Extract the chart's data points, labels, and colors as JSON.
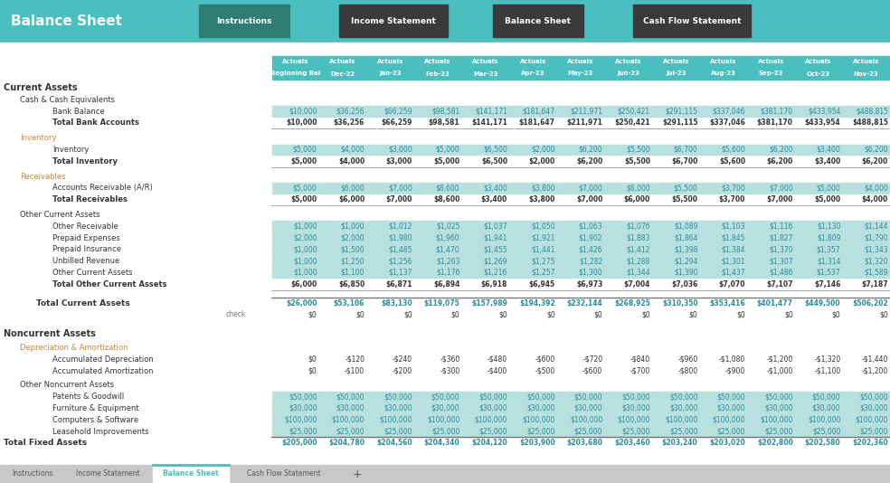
{
  "title": "Balance Sheet",
  "nav_buttons": [
    "Instructions",
    "Income Statement",
    "Balance Sheet",
    "Cash Flow Statement"
  ],
  "header_bg": "#4BBFBF",
  "nav_dark_bg": "#3A3A3A",
  "nav_active_bg": "#2E7D74",
  "col_header_bg": "#4BBFBF",
  "data_cell_bg": "#B8E0DF",
  "col_headers_row1": [
    "Actuals",
    "Actuals",
    "Actuals",
    "Actuals",
    "Actuals",
    "Actuals",
    "Actuals",
    "Actuals",
    "Actuals",
    "Actuals",
    "Actuals",
    "Actuals",
    "Actuals"
  ],
  "col_headers_row2": [
    "Beginning Bal",
    "Dec-22",
    "Jan-23",
    "Feb-23",
    "Mar-23",
    "Apr-23",
    "May-23",
    "Jun-23",
    "Jul-23",
    "Aug-23",
    "Sep-23",
    "Oct-23",
    "Nov-23"
  ],
  "rows": [
    {
      "type": "section",
      "label": "Current Assets",
      "indent": 0
    },
    {
      "type": "subsection",
      "label": "Cash & Cash Equivalents",
      "indent": 1
    },
    {
      "type": "data",
      "label": "Bank Balance",
      "indent": 3,
      "colored": true,
      "bold": false,
      "values": [
        "$10,000",
        "$36,256",
        "$66,259",
        "$98,581",
        "$141,171",
        "$181,647",
        "$211,971",
        "$250,421",
        "$291,115",
        "$337,046",
        "$381,170",
        "$433,954",
        "$488,815"
      ]
    },
    {
      "type": "total",
      "label": "Total Bank Accounts",
      "indent": 3,
      "colored": false,
      "bold": true,
      "values": [
        "$10,000",
        "$36,256",
        "$66,259",
        "$98,581",
        "$141,171",
        "$181,647",
        "$211,971",
        "$250,421",
        "$291,115",
        "$337,046",
        "$381,170",
        "$433,954",
        "$488,815"
      ]
    },
    {
      "type": "gap"
    },
    {
      "type": "subsection",
      "label": "Inventory",
      "indent": 1,
      "color": "#C8873A"
    },
    {
      "type": "data",
      "label": "Inventory",
      "indent": 3,
      "colored": true,
      "bold": false,
      "values": [
        "$5,000",
        "$4,000",
        "$3,000",
        "$5,000",
        "$6,500",
        "$2,000",
        "$6,200",
        "$5,500",
        "$6,700",
        "$5,600",
        "$6,200",
        "$3,400",
        "$6,200"
      ]
    },
    {
      "type": "total",
      "label": "Total Inventory",
      "indent": 3,
      "colored": false,
      "bold": true,
      "values": [
        "$5,000",
        "$4,000",
        "$3,000",
        "$5,000",
        "$6,500",
        "$2,000",
        "$6,200",
        "$5,500",
        "$6,700",
        "$5,600",
        "$6,200",
        "$3,400",
        "$6,200"
      ]
    },
    {
      "type": "gap"
    },
    {
      "type": "subsection",
      "label": "Receivables",
      "indent": 1,
      "color": "#C8873A"
    },
    {
      "type": "data",
      "label": "Accounts Receivable (A/R)",
      "indent": 3,
      "colored": true,
      "bold": false,
      "values": [
        "$5,000",
        "$6,000",
        "$7,000",
        "$8,600",
        "$3,400",
        "$3,800",
        "$7,000",
        "$6,000",
        "$5,500",
        "$3,700",
        "$7,000",
        "$5,000",
        "$4,000"
      ]
    },
    {
      "type": "total",
      "label": "Total Receivables",
      "indent": 3,
      "colored": false,
      "bold": true,
      "values": [
        "$5,000",
        "$6,000",
        "$7,000",
        "$8,600",
        "$3,400",
        "$3,800",
        "$7,000",
        "$6,000",
        "$5,500",
        "$3,700",
        "$7,000",
        "$5,000",
        "$4,000"
      ]
    },
    {
      "type": "gap"
    },
    {
      "type": "subsection",
      "label": "Other Current Assets",
      "indent": 1
    },
    {
      "type": "data",
      "label": "Other Receivable",
      "indent": 3,
      "colored": true,
      "bold": false,
      "values": [
        "$1,000",
        "$1,000",
        "$1,012",
        "$1,025",
        "$1,037",
        "$1,050",
        "$1,063",
        "$1,076",
        "$1,089",
        "$1,103",
        "$1,116",
        "$1,130",
        "$1,144"
      ]
    },
    {
      "type": "data",
      "label": "Prepaid Expenses",
      "indent": 3,
      "colored": true,
      "bold": false,
      "values": [
        "$2,000",
        "$2,000",
        "$1,980",
        "$1,960",
        "$1,941",
        "$1,921",
        "$1,902",
        "$1,883",
        "$1,864",
        "$1,845",
        "$1,827",
        "$1,809",
        "$1,790"
      ]
    },
    {
      "type": "data",
      "label": "Prepaid Insurance",
      "indent": 3,
      "colored": true,
      "bold": false,
      "values": [
        "$1,000",
        "$1,500",
        "$1,485",
        "$1,470",
        "$1,455",
        "$1,441",
        "$1,426",
        "$1,412",
        "$1,398",
        "$1,384",
        "$1,370",
        "$1,357",
        "$1,343"
      ]
    },
    {
      "type": "data",
      "label": "Unbilled Revenue",
      "indent": 3,
      "colored": true,
      "bold": false,
      "values": [
        "$1,000",
        "$1,250",
        "$1,256",
        "$1,263",
        "$1,269",
        "$1,275",
        "$1,282",
        "$1,288",
        "$1,294",
        "$1,301",
        "$1,307",
        "$1,314",
        "$1,320"
      ]
    },
    {
      "type": "data",
      "label": "Other Current Assets",
      "indent": 3,
      "colored": true,
      "bold": false,
      "values": [
        "$1,000",
        "$1,100",
        "$1,137",
        "$1,176",
        "$1,216",
        "$1,257",
        "$1,300",
        "$1,344",
        "$1,390",
        "$1,437",
        "$1,486",
        "$1,537",
        "$1,589"
      ]
    },
    {
      "type": "total",
      "label": "Total Other Current Assets",
      "indent": 3,
      "colored": false,
      "bold": true,
      "values": [
        "$6,000",
        "$6,850",
        "$6,871",
        "$6,894",
        "$6,918",
        "$6,945",
        "$6,973",
        "$7,004",
        "$7,036",
        "$7,070",
        "$7,107",
        "$7,146",
        "$7,187"
      ]
    },
    {
      "type": "gap2"
    },
    {
      "type": "grand_total",
      "label": "Total Current Assets",
      "indent": 2,
      "values": [
        "$26,000",
        "$53,106",
        "$83,130",
        "$119,075",
        "$157,989",
        "$194,392",
        "$232,144",
        "$268,925",
        "$310,350",
        "$353,416",
        "$401,477",
        "$449,500",
        "$506,202"
      ]
    },
    {
      "type": "check",
      "label": "check",
      "indent": 2,
      "values": [
        "$0",
        "$0",
        "$0",
        "$0",
        "$0",
        "$0",
        "$0",
        "$0",
        "$0",
        "$0",
        "$0",
        "$0",
        "$0"
      ]
    },
    {
      "type": "gap2"
    },
    {
      "type": "section",
      "label": "Noncurrent Assets",
      "indent": 0
    },
    {
      "type": "gap_small"
    },
    {
      "type": "subsection",
      "label": "Depreciation & Amortization",
      "indent": 1,
      "color": "#C8873A"
    },
    {
      "type": "data",
      "label": "Accumulated Depreciation",
      "indent": 3,
      "colored": false,
      "bold": false,
      "values": [
        "$0",
        "-$120",
        "-$240",
        "-$360",
        "-$480",
        "-$600",
        "-$720",
        "-$840",
        "-$960",
        "-$1,080",
        "-$1,200",
        "-$1,320",
        "-$1,440"
      ]
    },
    {
      "type": "data",
      "label": "Accumulated Amortization",
      "indent": 3,
      "colored": false,
      "bold": false,
      "values": [
        "$0",
        "-$100",
        "-$200",
        "-$300",
        "-$400",
        "-$500",
        "-$600",
        "-$700",
        "-$800",
        "-$900",
        "-$1,000",
        "-$1,100",
        "-$1,200"
      ]
    },
    {
      "type": "gap_small"
    },
    {
      "type": "subsection",
      "label": "Other Noncurrent Assets",
      "indent": 1
    },
    {
      "type": "data",
      "label": "Patents & Goodwill",
      "indent": 3,
      "colored": true,
      "bold": false,
      "values": [
        "$50,000",
        "$50,000",
        "$50,000",
        "$50,000",
        "$50,000",
        "$50,000",
        "$50,000",
        "$50,000",
        "$50,000",
        "$50,000",
        "$50,000",
        "$50,000",
        "$50,000"
      ]
    },
    {
      "type": "data",
      "label": "Furniture & Equipment",
      "indent": 3,
      "colored": true,
      "bold": false,
      "values": [
        "$30,000",
        "$30,000",
        "$30,000",
        "$30,000",
        "$30,000",
        "$30,000",
        "$30,000",
        "$30,000",
        "$30,000",
        "$30,000",
        "$30,000",
        "$30,000",
        "$30,000"
      ]
    },
    {
      "type": "data",
      "label": "Computers & Software",
      "indent": 3,
      "colored": true,
      "bold": false,
      "values": [
        "$100,000",
        "$100,000",
        "$100,000",
        "$100,000",
        "$100,000",
        "$100,000",
        "$100,000",
        "$100,000",
        "$100,000",
        "$100,000",
        "$100,000",
        "$100,000",
        "$100,000"
      ]
    },
    {
      "type": "data",
      "label": "Leasehold Improvements",
      "indent": 3,
      "colored": true,
      "bold": false,
      "values": [
        "$25,000",
        "$25,000",
        "$25,000",
        "$25,000",
        "$25,000",
        "$25,000",
        "$25,000",
        "$25,000",
        "$25,000",
        "$25,000",
        "$25,000",
        "$25,000",
        "$25,000"
      ]
    },
    {
      "type": "grand_total",
      "label": "Total Fixed Assets",
      "indent": 0,
      "values": [
        "$205,000",
        "$204,780",
        "$204,560",
        "$204,340",
        "$204,120",
        "$203,900",
        "$203,680",
        "$203,460",
        "$203,240",
        "$203,020",
        "$202,800",
        "$202,580",
        "$202,360"
      ]
    }
  ],
  "tab_labels": [
    "Instructions",
    "Income Statement",
    "Balance Sheet",
    "Cash Flow Statement"
  ],
  "tab_active": 2
}
